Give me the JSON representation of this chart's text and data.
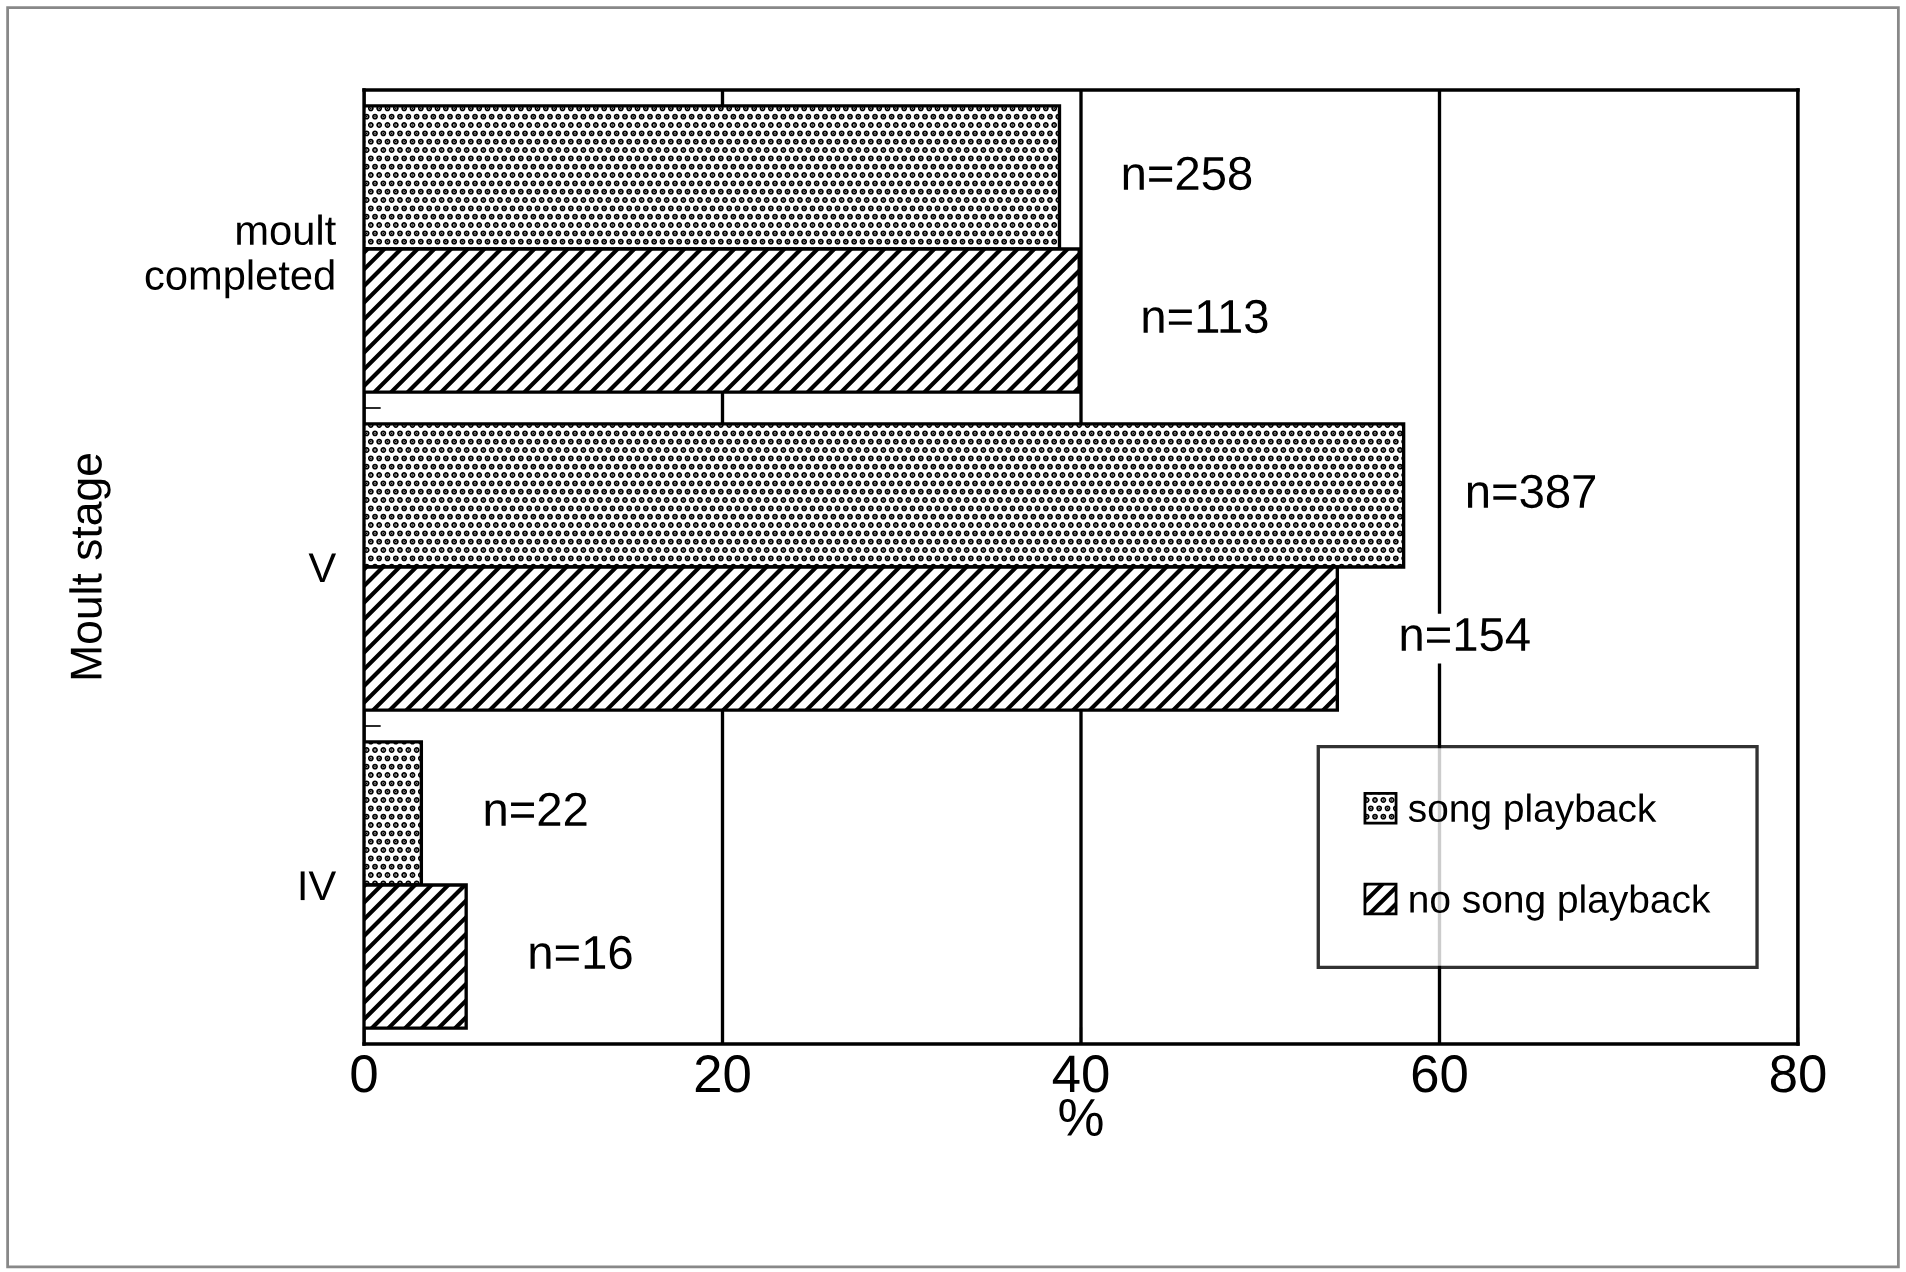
{
  "chart_data": {
    "type": "bar",
    "orientation": "horizontal",
    "xlabel": "%",
    "ylabel": "Moult stage",
    "categories": [
      "moult\ncompleted",
      "V",
      "IV"
    ],
    "series": [
      {
        "name": "song playback",
        "color": "#000000",
        "values": [
          38.8,
          58.0,
          3.2
        ]
      },
      {
        "name": "no song playback",
        "color": "#000000",
        "values": [
          39.9,
          54.3,
          5.7
        ]
      }
    ],
    "annotations": [
      {
        "text": "n=258",
        "x": 38.8,
        "y": "moult\ncompleted"
      },
      {
        "text": "n=387",
        "x": 58.0,
        "y": "V"
      },
      {
        "text": "n=22",
        "x": 3.2,
        "y": "IV"
      },
      {
        "text": "n=113",
        "x": 39.9,
        "y": "moult\ncompleted"
      },
      {
        "text": "n=154",
        "x": 54.3,
        "y": "V"
      },
      {
        "text": "n=16",
        "x": 5.7,
        "y": "IV"
      }
    ],
    "xlim": [
      0,
      80
    ],
    "xticks": [
      0,
      20,
      40,
      60,
      80
    ],
    "grid": "x",
    "legend": "bottom right"
  }
}
